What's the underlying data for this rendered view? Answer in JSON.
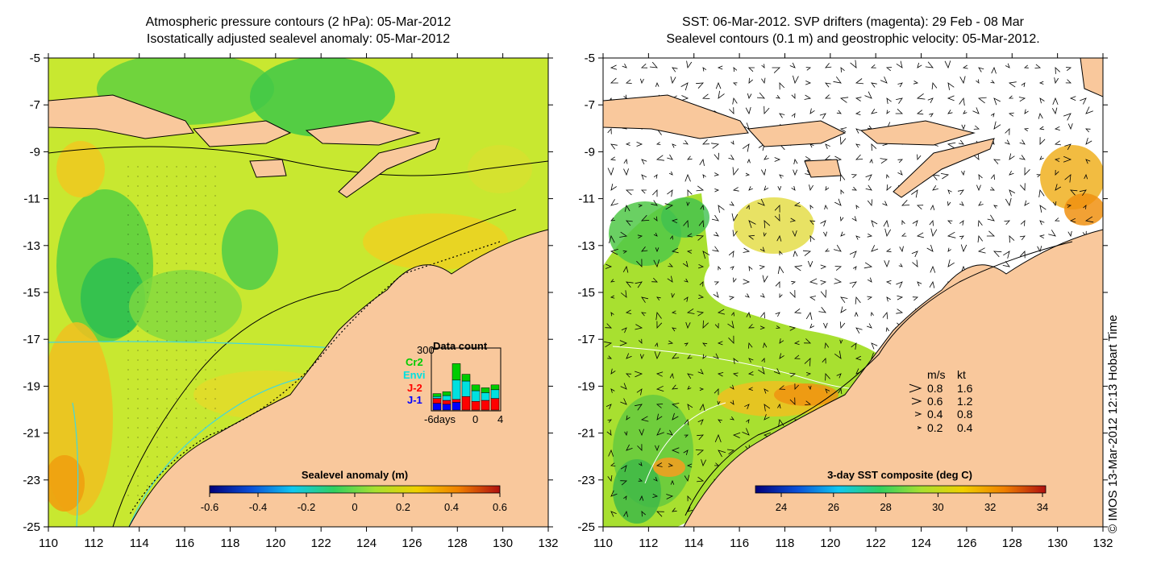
{
  "left_panel": {
    "title_line1": "Atmospheric pressure contours (2 hPa): 05-Mar-2012",
    "title_line2": "Isostatically adjusted sealevel anomaly: 05-Mar-2012",
    "y_ticks": [
      "-5",
      "-7",
      "-9",
      "-11",
      "-13",
      "-15",
      "-17",
      "-19",
      "-21",
      "-23",
      "-25"
    ],
    "x_ticks": [
      "110",
      "112",
      "114",
      "116",
      "118",
      "120",
      "122",
      "124",
      "126",
      "128",
      "130",
      "132"
    ],
    "colorbar": {
      "label": "Sealevel anomaly (m)",
      "ticks": [
        "-0.6",
        "-0.4",
        "-0.2",
        "0",
        "0.2",
        "0.4",
        "0.6"
      ],
      "colors": [
        "#00007a",
        "#0a4fd8",
        "#10c8f0",
        "#30d060",
        "#a8e030",
        "#f0d000",
        "#f08000",
        "#b01010"
      ]
    },
    "data_count": {
      "title": "Data count",
      "ymax_label": "300",
      "x_ticks": [
        "-6days",
        "0",
        "4"
      ],
      "missions": [
        {
          "name": "Cr2",
          "color": "#00cc00"
        },
        {
          "name": "Envi",
          "color": "#00e0e0"
        },
        {
          "name": "J-2",
          "color": "#ff0000"
        },
        {
          "name": "J-1",
          "color": "#0000ff"
        }
      ],
      "bars": [
        {
          "J-1": 35,
          "J-2": 25,
          "Envi": 10,
          "Cr2": 15
        },
        {
          "J-1": 30,
          "J-2": 20,
          "Envi": 25,
          "Cr2": 20
        },
        {
          "J-1": 40,
          "J-2": 15,
          "Envi": 100,
          "Cr2": 85
        },
        {
          "J-1": 0,
          "J-2": 70,
          "Envi": 80,
          "Cr2": 35
        },
        {
          "J-1": 0,
          "J-2": 45,
          "Envi": 55,
          "Cr2": 30
        },
        {
          "J-1": 0,
          "J-2": 50,
          "Envi": 40,
          "Cr2": 25
        },
        {
          "J-1": 0,
          "J-2": 60,
          "Envi": 45,
          "Cr2": 25
        }
      ]
    }
  },
  "right_panel": {
    "title_line1": "SST: 06-Mar-2012. SVP drifters (magenta): 29 Feb - 08 Mar",
    "title_line2": "Sealevel contours (0.1 m) and geostrophic velocity: 05-Mar-2012.",
    "y_ticks": [
      "-5",
      "-7",
      "-9",
      "-11",
      "-13",
      "-15",
      "-17",
      "-19",
      "-21",
      "-23",
      "-25"
    ],
    "x_ticks": [
      "110",
      "112",
      "114",
      "116",
      "118",
      "120",
      "122",
      "124",
      "126",
      "128",
      "130",
      "132"
    ],
    "colorbar": {
      "label": "3-day SST composite (deg C)",
      "ticks": [
        "24",
        "26",
        "28",
        "30",
        "32",
        "34"
      ],
      "colors": [
        "#00007a",
        "#0a4fd8",
        "#10c8f0",
        "#30d060",
        "#a8e030",
        "#f0d000",
        "#f08000",
        "#b01010"
      ]
    },
    "velocity_legend": {
      "header_ms": "m/s",
      "header_kt": "kt",
      "rows": [
        {
          "ms": "0.8",
          "kt": "1.6"
        },
        {
          "ms": "0.6",
          "kt": "1.2"
        },
        {
          "ms": "0.4",
          "kt": "0.8"
        },
        {
          "ms": "0.2",
          "kt": "0.4"
        }
      ]
    }
  },
  "credit": "© IMOS 13-Mar-2012 12:13 Hobart Time",
  "map_colors": {
    "land": "#f9c89c",
    "sst_background": "#ffffff",
    "sla_base": "#c8e830",
    "coast": "#000000",
    "contour_cyan": "#40d8e0"
  }
}
